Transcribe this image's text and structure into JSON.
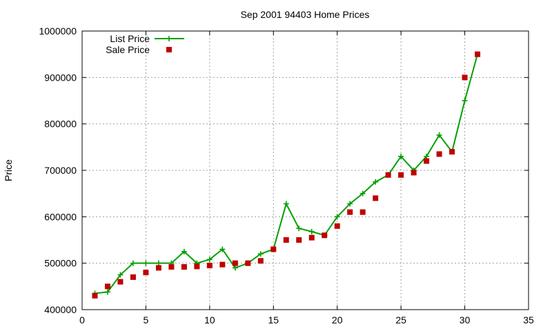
{
  "chart_data": {
    "type": "line",
    "title": "Sep 2001 94403 Home Prices",
    "xlabel": "",
    "ylabel": "Price",
    "xlim": [
      0,
      35
    ],
    "ylim": [
      400000,
      1000000
    ],
    "xticks": [
      0,
      5,
      10,
      15,
      20,
      25,
      30,
      35
    ],
    "yticks": [
      400000,
      500000,
      600000,
      700000,
      800000,
      900000,
      1000000
    ],
    "grid": true,
    "legend_position": "top-left",
    "series": [
      {
        "name": "List Price",
        "style": "line-plus",
        "color": "#00a000",
        "x": [
          1,
          2,
          3,
          4,
          5,
          6,
          7,
          8,
          9,
          10,
          11,
          12,
          13,
          14,
          15,
          16,
          17,
          18,
          19,
          20,
          21,
          22,
          23,
          24,
          25,
          26,
          27,
          28,
          29,
          30,
          31
        ],
        "y": [
          435000,
          438000,
          475000,
          500000,
          500000,
          500000,
          500000,
          525000,
          500000,
          508000,
          530000,
          490000,
          500000,
          520000,
          530000,
          628000,
          575000,
          568000,
          560000,
          600000,
          628000,
          650000,
          675000,
          690000,
          730000,
          700000,
          730000,
          776000,
          740000,
          850000,
          950000
        ]
      },
      {
        "name": "Sale Price",
        "style": "square-points",
        "color": "#c00000",
        "x": [
          1,
          2,
          3,
          4,
          5,
          6,
          7,
          8,
          9,
          10,
          11,
          12,
          13,
          14,
          15,
          16,
          17,
          18,
          19,
          20,
          21,
          22,
          23,
          24,
          25,
          26,
          27,
          28,
          29,
          30,
          31
        ],
        "y": [
          430000,
          450000,
          460000,
          470000,
          480000,
          490000,
          492000,
          492000,
          493000,
          495000,
          497000,
          500000,
          500000,
          505000,
          530000,
          550000,
          550000,
          555000,
          560000,
          580000,
          610000,
          610000,
          640000,
          690000,
          690000,
          695000,
          720000,
          735000,
          740000,
          900000,
          950000
        ]
      }
    ]
  }
}
